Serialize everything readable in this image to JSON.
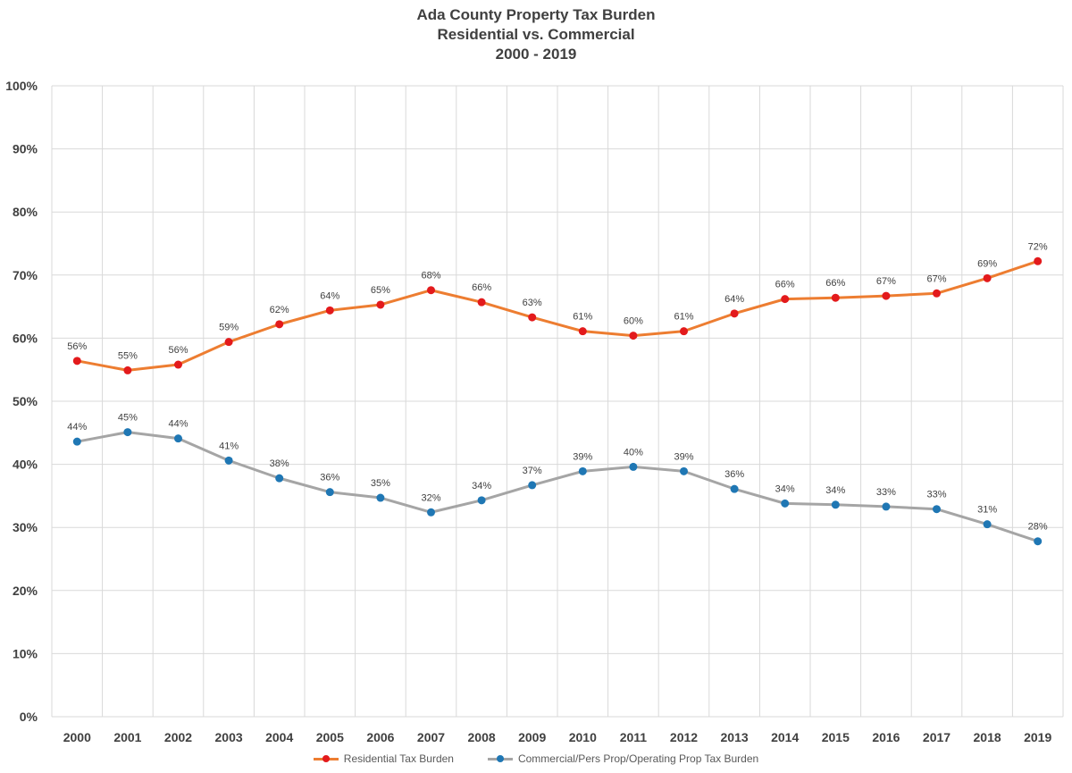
{
  "chart_data": {
    "type": "line",
    "title": "Ada County Property Tax Burden",
    "subtitle": "Residential vs. Commercial",
    "subtitle2": "2000 - 2019",
    "xlabel": "",
    "ylabel": "",
    "ylim": [
      0,
      100
    ],
    "yticks": [
      "0%",
      "10%",
      "20%",
      "30%",
      "40%",
      "50%",
      "60%",
      "70%",
      "80%",
      "90%",
      "100%"
    ],
    "grid": true,
    "legend_position": "bottom",
    "categories": [
      "2000",
      "2001",
      "2002",
      "2003",
      "2004",
      "2005",
      "2006",
      "2007",
      "2008",
      "2009",
      "2010",
      "2011",
      "2012",
      "2013",
      "2014",
      "2015",
      "2016",
      "2017",
      "2018",
      "2019"
    ],
    "series": [
      {
        "name": "Residential Tax Burden",
        "line_color": "#ED7D31",
        "marker_color": "#E31A1C",
        "values": [
          56.4,
          54.9,
          55.8,
          59.4,
          62.2,
          64.4,
          65.3,
          67.6,
          65.7,
          63.3,
          61.1,
          60.4,
          61.1,
          63.9,
          66.2,
          66.4,
          66.7,
          67.1,
          69.5,
          72.2
        ],
        "labels": [
          "56%",
          "55%",
          "56%",
          "59%",
          "62%",
          "64%",
          "65%",
          "68%",
          "66%",
          "63%",
          "61%",
          "60%",
          "61%",
          "64%",
          "66%",
          "66%",
          "67%",
          "67%",
          "69%",
          "72%"
        ]
      },
      {
        "name": "Commercial/Pers Prop/Operating Prop Tax Burden",
        "line_color": "#A5A5A5",
        "marker_color": "#1F77B4",
        "values": [
          43.6,
          45.1,
          44.1,
          40.6,
          37.8,
          35.6,
          34.7,
          32.4,
          34.3,
          36.7,
          38.9,
          39.6,
          38.9,
          36.1,
          33.8,
          33.6,
          33.3,
          32.9,
          30.5,
          27.8
        ],
        "labels": [
          "44%",
          "45%",
          "44%",
          "41%",
          "38%",
          "36%",
          "35%",
          "32%",
          "34%",
          "37%",
          "39%",
          "40%",
          "39%",
          "36%",
          "34%",
          "34%",
          "33%",
          "33%",
          "31%",
          "28%"
        ]
      }
    ]
  }
}
